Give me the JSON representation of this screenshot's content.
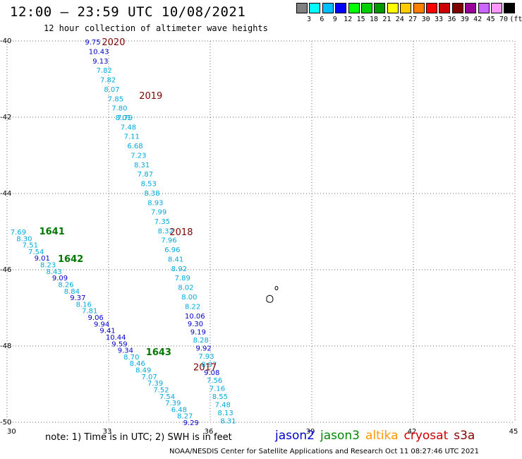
{
  "title": "12:00 – 23:59 UTC 10/08/2021",
  "subtitle": "12 hour collection of altimeter wave heights",
  "scale": {
    "colors": [
      "#808080",
      "#00ffff",
      "#00bfff",
      "#0000ff",
      "#00ff00",
      "#00d000",
      "#009900",
      "#ffff00",
      "#ffcc00",
      "#ff8000",
      "#ff0000",
      "#cc0000",
      "#800000",
      "#990099",
      "#cc66ff",
      "#ff99ff",
      "#000000"
    ],
    "labels": [
      "3",
      "6",
      "9",
      "12",
      "15",
      "18",
      "21",
      "24",
      "27",
      "30",
      "33",
      "36",
      "39",
      "42",
      "45",
      "70",
      "(ft)"
    ]
  },
  "axes": {
    "x_ticks": [
      "30",
      "33",
      "36",
      "39",
      "42",
      "45"
    ],
    "y_ticks": [
      "-40",
      "-42",
      "-44",
      "-46",
      "-48",
      "-50"
    ]
  },
  "chart_data": {
    "type": "scatter",
    "xlim": [
      30,
      45
    ],
    "ylim": [
      -50,
      -40
    ],
    "grid": true,
    "units": "ft",
    "colors": {
      "c": "#00aadd",
      "b": "#0000cc",
      "g": "#007700",
      "r": "#800000"
    },
    "tracks": [
      {
        "x0": 32.3,
        "y0": -40.02,
        "x1": 33.2,
        "y1": -42.0,
        "values": [
          {
            "v": "9.75",
            "c": "b"
          },
          {
            "v": "10.43",
            "c": "b"
          },
          {
            "v": "9.13",
            "c": "b"
          },
          {
            "v": "7.82",
            "c": "c"
          },
          {
            "v": "7.82",
            "c": "c"
          },
          {
            "v": "8.07",
            "c": "c"
          },
          {
            "v": "7.85",
            "c": "c"
          },
          {
            "v": "7.80",
            "c": "c"
          },
          {
            "v": "8.01",
            "c": "c"
          }
        ]
      },
      {
        "x0": 33.25,
        "y0": -42.0,
        "x1": 35.25,
        "y1": -46.95,
        "values": [
          {
            "v": "7.79",
            "c": "c"
          },
          {
            "v": "7.48",
            "c": "c"
          },
          {
            "v": "7.11",
            "c": "c"
          },
          {
            "v": "6.68",
            "c": "c"
          },
          {
            "v": "7.23",
            "c": "c"
          },
          {
            "v": "8.31",
            "c": "c"
          },
          {
            "v": "7.87",
            "c": "c"
          },
          {
            "v": "8.53",
            "c": "c"
          },
          {
            "v": "8.38",
            "c": "c"
          },
          {
            "v": "8.93",
            "c": "c"
          },
          {
            "v": "7.99",
            "c": "c"
          },
          {
            "v": "7.35",
            "c": "c"
          },
          {
            "v": "8.32",
            "c": "c"
          },
          {
            "v": "7.96",
            "c": "c"
          },
          {
            "v": "6.96",
            "c": "c"
          },
          {
            "v": "8.41",
            "c": "c"
          },
          {
            "v": "8.92",
            "c": "c"
          },
          {
            "v": "7.89",
            "c": "c"
          },
          {
            "v": "8.02",
            "c": "c"
          },
          {
            "v": "8.00",
            "c": "c"
          },
          {
            "v": "8.22",
            "c": "c"
          }
        ]
      },
      {
        "x0": 35.25,
        "y0": -47.2,
        "x1": 36.3,
        "y1": -49.95,
        "values": [
          {
            "v": "10.06",
            "c": "b"
          },
          {
            "v": "9.30",
            "c": "b"
          },
          {
            "v": "9.19",
            "c": "b"
          },
          {
            "v": "8.28",
            "c": "c"
          },
          {
            "v": "9.92",
            "c": "b"
          },
          {
            "v": "7.93",
            "c": "c"
          },
          {
            "v": "8.97",
            "c": "c"
          },
          {
            "v": "9.08",
            "c": "b"
          },
          {
            "v": "7.56",
            "c": "c"
          },
          {
            "v": "7.16",
            "c": "c"
          },
          {
            "v": "8.55",
            "c": "c"
          },
          {
            "v": "7.48",
            "c": "c"
          },
          {
            "v": "8.13",
            "c": "c"
          },
          {
            "v": "8.31",
            "c": "c"
          }
        ]
      },
      {
        "x0": 30.1,
        "y0": -45.0,
        "x1": 35.2,
        "y1": -50.0,
        "values": [
          {
            "v": "7.69",
            "c": "c"
          },
          {
            "v": "8.30",
            "c": "c"
          },
          {
            "v": "7.51",
            "c": "c"
          },
          {
            "v": "7.54",
            "c": "c"
          },
          {
            "v": "9.01",
            "c": "b"
          },
          {
            "v": "8.23",
            "c": "c"
          },
          {
            "v": "8.43",
            "c": "c"
          },
          {
            "v": "9.09",
            "c": "b"
          },
          {
            "v": "8.26",
            "c": "c"
          },
          {
            "v": "8.84",
            "c": "c"
          },
          {
            "v": "9.37",
            "c": "b"
          },
          {
            "v": "8.16",
            "c": "c"
          },
          {
            "v": "7.81",
            "c": "c"
          },
          {
            "v": "9.06",
            "c": "b"
          },
          {
            "v": "9.94",
            "c": "b"
          },
          {
            "v": "9.41",
            "c": "b"
          },
          {
            "v": "10.44",
            "c": "b"
          },
          {
            "v": "9.59",
            "c": "b"
          },
          {
            "v": "9.34",
            "c": "b"
          },
          {
            "v": "8.70",
            "c": "c"
          },
          {
            "v": "8.46",
            "c": "c"
          },
          {
            "v": "8.49",
            "c": "c"
          },
          {
            "v": "7.07",
            "c": "c"
          },
          {
            "v": "7.39",
            "c": "c"
          },
          {
            "v": "7.52",
            "c": "c"
          },
          {
            "v": "7.54",
            "c": "c"
          },
          {
            "v": "7.39",
            "c": "c"
          },
          {
            "v": "6.48",
            "c": "c"
          },
          {
            "v": "8.27",
            "c": "c"
          },
          {
            "v": "9.29",
            "c": "b"
          }
        ]
      }
    ],
    "time_labels": [
      {
        "t": "2020",
        "c": "r",
        "x": 32.8,
        "y": -40.02
      },
      {
        "t": "2019",
        "c": "r",
        "x": 33.9,
        "y": -41.43
      },
      {
        "t": "2018",
        "c": "r",
        "x": 34.8,
        "y": -45.0
      },
      {
        "t": "2017",
        "c": "r",
        "x": 35.5,
        "y": -48.55
      },
      {
        "t": "1641",
        "c": "g",
        "x": 30.95,
        "y": -44.98
      },
      {
        "t": "1642",
        "c": "g",
        "x": 31.5,
        "y": -45.7
      },
      {
        "t": "1643",
        "c": "g",
        "x": 34.1,
        "y": -48.15
      }
    ]
  },
  "note": {
    "text": "note:  1) Time is in UTC;  2) SWH is in feet",
    "satellites": [
      {
        "name": "jason2",
        "color": "#0000cc"
      },
      {
        "name": "jason3",
        "color": "#008800"
      },
      {
        "name": "altika",
        "color": "#ff9900"
      },
      {
        "name": "cryosat",
        "color": "#cc0000"
      },
      {
        "name": "s3a",
        "color": "#880000"
      }
    ]
  },
  "credit": "NOAA/NESDIS Center for Satellite Applications and Research     Oct 11 08:27:46 UTC 2021"
}
